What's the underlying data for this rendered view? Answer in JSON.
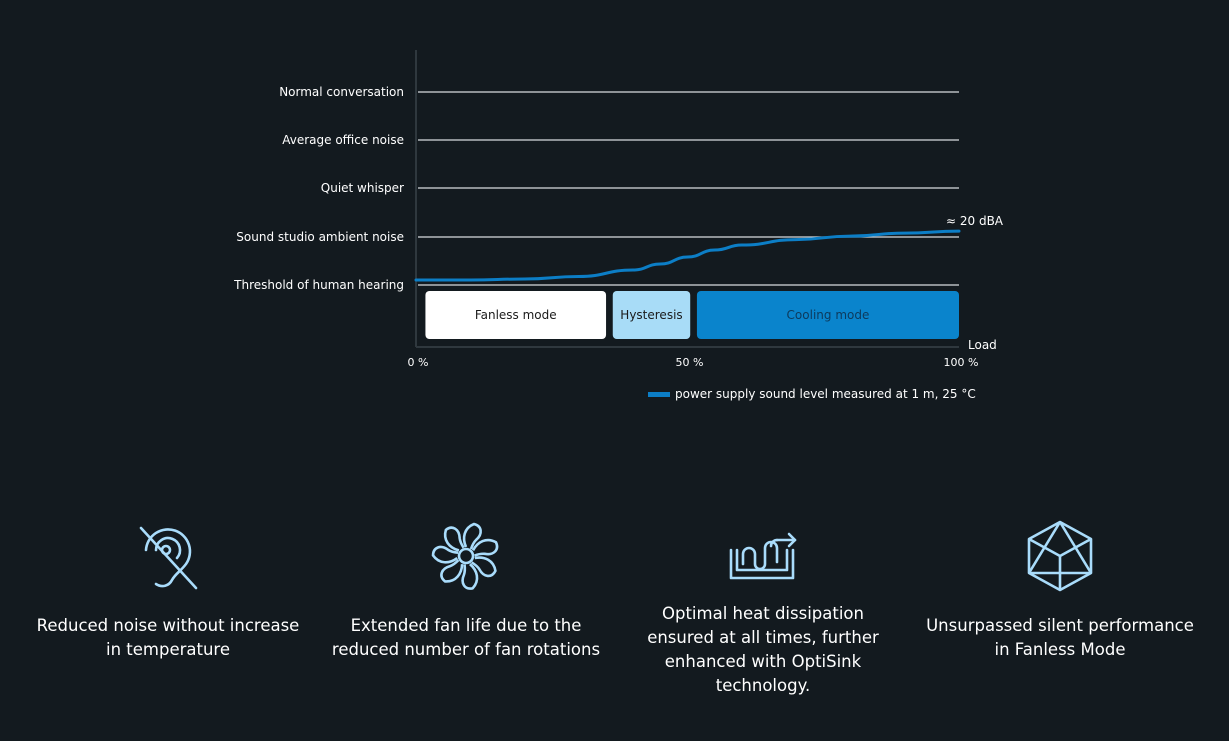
{
  "chart_data": {
    "type": "line",
    "y_categories": [
      "Threshold of human hearing",
      "Sound studio ambient noise",
      "Quiet whisper",
      "Average office noise",
      "Normal conversation"
    ],
    "x_ticks": [
      "0 %",
      "50 %",
      "100 %"
    ],
    "xlabel": "Load",
    "xlim": [
      0,
      100
    ],
    "end_annotation": "≈ 20 dBA",
    "legend": "power supply sound level measured at 1 m, 25 °C",
    "legend_position": "bottom-right",
    "series_color": "#0c7ec6",
    "series": [
      {
        "x": [
          0,
          10,
          20,
          30,
          40,
          45,
          50,
          55,
          60,
          70,
          80,
          90,
          100
        ],
        "y": [
          0.02,
          0.02,
          0.04,
          0.09,
          0.22,
          0.34,
          0.48,
          0.62,
          0.72,
          0.83,
          0.9,
          0.96,
          1.0
        ]
      }
    ],
    "modes": [
      {
        "label": "Fanless mode",
        "from": 1,
        "to": 35,
        "fill": "#ffffff",
        "text_color": "#1a1a1a"
      },
      {
        "label": "Hysteresis",
        "from": 35.5,
        "to": 50.5,
        "fill": "#a8dcf7",
        "text_color": "#1a1a1a"
      },
      {
        "label": "Cooling mode",
        "from": 51,
        "to": 100,
        "fill": "#0a84cc",
        "text_color": "#0d3a5c"
      }
    ]
  },
  "features": [
    {
      "icon": "reduced-noise-icon",
      "text": "Reduced noise without increase in temperature"
    },
    {
      "icon": "fan-icon",
      "text": "Extended fan life due to the reduced number of fan rotations"
    },
    {
      "icon": "heat-dissipation-icon",
      "text": "Optimal heat dissipation ensured at all times, further enhanced with OptiSink technology."
    },
    {
      "icon": "silent-cube-icon",
      "text": "Unsurpassed silent performance in Fanless Mode"
    }
  ],
  "icon_color": "#a9dcfb"
}
